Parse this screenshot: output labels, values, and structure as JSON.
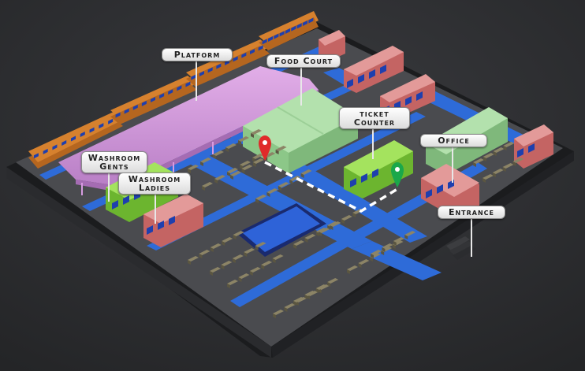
{
  "colors": {
    "background": "#2f3033",
    "base": "#4a4b4f",
    "road": "#2e6bd8",
    "platform_roof": "#d79be0",
    "train": "#d6812e",
    "train_window": "#1e3fae",
    "green_building": "#8fd84a",
    "pink_building": "#d9797a",
    "food_court": "#9fd39a",
    "route": "#ffffff",
    "start_pin": "#e02a2a",
    "end_pin": "#1aa84a"
  },
  "labels": {
    "platform": "Platform",
    "food_court": "Food Court",
    "ticket_line1": "ticket",
    "ticket_line2": "Counter",
    "office": "Office",
    "washroom_gents_line1": "Washroom",
    "washroom_gents_line2": "Gents",
    "washroom_ladies_line1": "Washroom",
    "washroom_ladies_line2": "Ladies",
    "entrance": "Entrance"
  },
  "icons": {
    "start": "map-pin-icon",
    "destination": "map-pin-icon"
  }
}
